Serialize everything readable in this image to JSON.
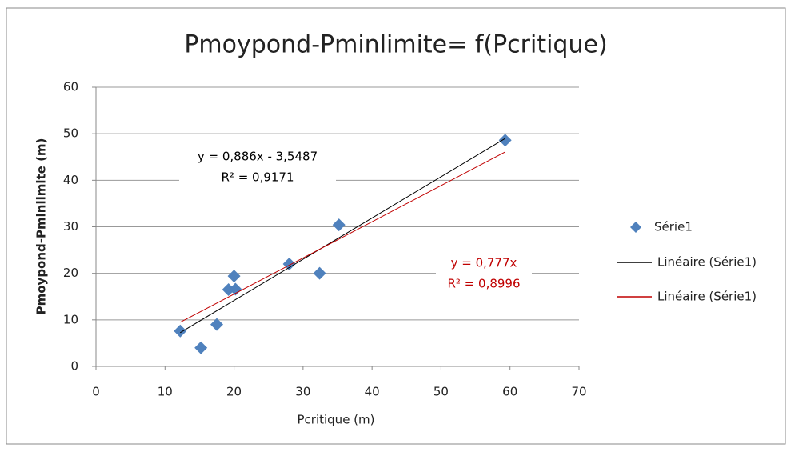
{
  "chart_data": {
    "type": "scatter",
    "title": "Pmoypond-Pminlimite= f(Pcritique)",
    "x_label": "Pcritique (m)",
    "y_label": "Pmoypond-Pminlimite (m)",
    "xlim": [
      0,
      70
    ],
    "xticks": [
      0,
      10,
      20,
      30,
      40,
      50,
      60,
      70
    ],
    "ylim": [
      0,
      60
    ],
    "yticks": [
      0,
      10,
      20,
      30,
      40,
      50,
      60
    ],
    "grid": true,
    "legend": "right",
    "series": [
      {
        "name": "Série1",
        "color": "#4f81bd",
        "x": [
          12.2,
          15.2,
          17.5,
          19.2,
          20.0,
          20.2,
          28.0,
          32.4,
          35.2,
          59.3
        ],
        "values": [
          7.6,
          4.0,
          9.0,
          16.5,
          19.4,
          16.6,
          22.0,
          20.0,
          30.4,
          48.6
        ]
      }
    ],
    "trendlines": [
      {
        "name": "Linéaire (Série1)",
        "color": "#000000",
        "slope": 0.886,
        "intercept": -3.5487,
        "x": [
          12.2,
          59.3
        ],
        "equation": "y = 0,886x - 3,5487",
        "r2": "R² = 0,9171"
      },
      {
        "name": "Linéaire (Série1)",
        "color": "#c00000",
        "slope": 0.777,
        "intercept": 0,
        "x": [
          12.2,
          59.3
        ],
        "equation": "y = 0,777x",
        "r2": "R² = 0,8996"
      }
    ]
  }
}
